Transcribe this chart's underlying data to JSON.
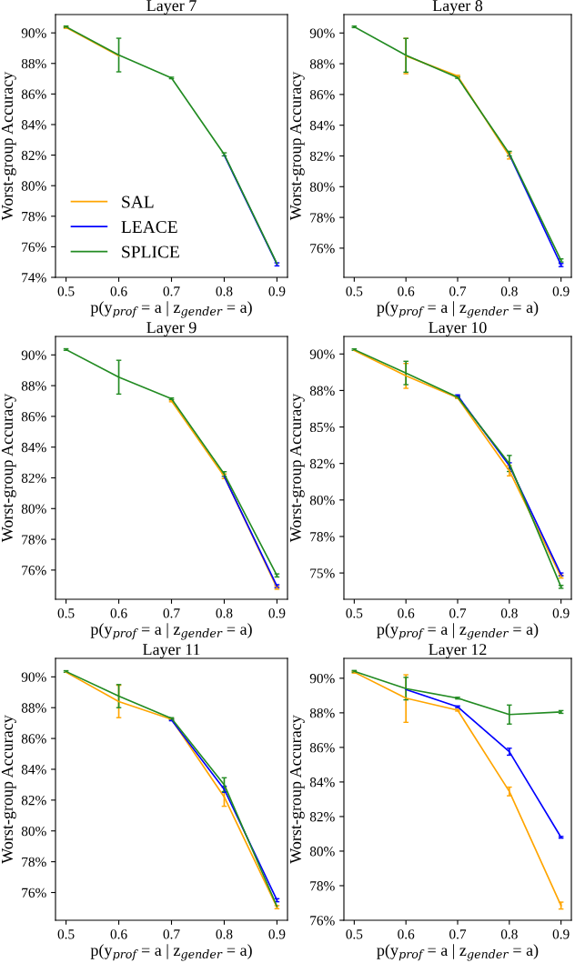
{
  "chart_data": [
    {
      "type": "line",
      "title": "Layer 7",
      "xlabel": "p(y$_{prof}$ = a | z$_{gender}$ = a)",
      "ylabel": "Worst-group Accuracy",
      "x": [
        0.5,
        0.6,
        0.7,
        0.8,
        0.9
      ],
      "xlim": [
        0.48,
        0.92
      ],
      "xticks": [
        0.5,
        0.6,
        0.7,
        0.8,
        0.9
      ],
      "ylim": [
        74,
        91.2
      ],
      "yticks": [
        {
          "value": 74,
          "label": "74%"
        },
        {
          "value": 76,
          "label": "76%"
        },
        {
          "value": 78,
          "label": "78%"
        },
        {
          "value": 80,
          "label": "80%"
        },
        {
          "value": 82,
          "label": "82%"
        },
        {
          "value": 84,
          "label": "84%"
        },
        {
          "value": 86,
          "label": "86%"
        },
        {
          "value": 88,
          "label": "88%"
        },
        {
          "value": 90,
          "label": "90%"
        }
      ],
      "legend": "bottom left",
      "grid": false,
      "marker": "none",
      "line_style": "solid",
      "series": [
        {
          "name": "SAL",
          "color": "#ffa500",
          "values": [
            90.35,
            88.5,
            null,
            null,
            null
          ],
          "errors": [
            0.05,
            null,
            null,
            null,
            null
          ]
        },
        {
          "name": "LEACE",
          "color": "#0000ff",
          "values": [
            null,
            null,
            null,
            82.0,
            74.85
          ],
          "errors": [
            null,
            null,
            null,
            null,
            0.1
          ]
        },
        {
          "name": "SPLICE",
          "color": "#228b22",
          "values": [
            90.4,
            88.55,
            87.05,
            82.05,
            74.9
          ],
          "errors": [
            0.05,
            1.1,
            0.05,
            0.1,
            null
          ]
        }
      ]
    },
    {
      "type": "line",
      "title": "Layer 8",
      "xlabel": "p(y$_{prof}$ = a | z$_{gender}$ = a)",
      "ylabel": "Worst-group Accuracy",
      "x": [
        0.5,
        0.6,
        0.7,
        0.8,
        0.9
      ],
      "xlim": [
        0.48,
        0.92
      ],
      "xticks": [
        0.5,
        0.6,
        0.7,
        0.8,
        0.9
      ],
      "ylim": [
        74.1,
        91.2
      ],
      "yticks": [
        {
          "value": 76,
          "label": "76%"
        },
        {
          "value": 78,
          "label": "78%"
        },
        {
          "value": 80,
          "label": "80%"
        },
        {
          "value": 82,
          "label": "82%"
        },
        {
          "value": 84,
          "label": "84%"
        },
        {
          "value": 86,
          "label": "86%"
        },
        {
          "value": 88,
          "label": "88%"
        },
        {
          "value": 90,
          "label": "90%"
        }
      ],
      "grid": false,
      "marker": "none",
      "line_style": "solid",
      "series": [
        {
          "color": "#ffa500",
          "values": [
            null,
            88.5,
            87.2,
            82.0,
            null
          ],
          "errors": [
            null,
            1.15,
            0.05,
            0.2,
            null
          ]
        },
        {
          "color": "#0000ff",
          "values": [
            null,
            null,
            null,
            82.1,
            74.9
          ],
          "errors": [
            null,
            null,
            null,
            null,
            0.1
          ]
        },
        {
          "color": "#228b22",
          "values": [
            90.4,
            88.55,
            87.1,
            82.15,
            75.2
          ],
          "errors": [
            0.05,
            1.1,
            0.05,
            0.15,
            0.1
          ]
        }
      ]
    },
    {
      "type": "line",
      "title": "Layer 9",
      "xlabel": "p(y$_{prof}$ = a | z$_{gender}$ = a)",
      "ylabel": "Worst-group Accuracy",
      "x": [
        0.5,
        0.6,
        0.7,
        0.8,
        0.9
      ],
      "xlim": [
        0.48,
        0.92
      ],
      "xticks": [
        0.5,
        0.6,
        0.7,
        0.8,
        0.9
      ],
      "ylim": [
        74.1,
        91.2
      ],
      "yticks": [
        {
          "value": 76,
          "label": "76%"
        },
        {
          "value": 78,
          "label": "78%"
        },
        {
          "value": 80,
          "label": "80%"
        },
        {
          "value": 82,
          "label": "82%"
        },
        {
          "value": 84,
          "label": "84%"
        },
        {
          "value": 86,
          "label": "86%"
        },
        {
          "value": 88,
          "label": "88%"
        },
        {
          "value": 90,
          "label": "90%"
        }
      ],
      "grid": false,
      "marker": "none",
      "line_style": "solid",
      "series": [
        {
          "color": "#ffa500",
          "values": [
            null,
            null,
            87.0,
            82.1,
            74.85
          ],
          "errors": [
            null,
            null,
            0.05,
            0.15,
            0.1
          ]
        },
        {
          "color": "#0000ff",
          "values": [
            null,
            null,
            null,
            82.1,
            74.95
          ],
          "errors": [
            null,
            null,
            null,
            null,
            0.1
          ]
        },
        {
          "color": "#228b22",
          "values": [
            90.35,
            88.55,
            87.15,
            82.25,
            75.65
          ],
          "errors": [
            0.05,
            1.1,
            0.05,
            0.15,
            0.1
          ]
        }
      ]
    },
    {
      "type": "line",
      "title": "Layer 10",
      "xlabel": "p(y$_{prof}$ = a | z$_{gender}$ = a)",
      "ylabel": "Worst-group Accuracy",
      "x": [
        0.5,
        0.6,
        0.7,
        0.8,
        0.9
      ],
      "xlim": [
        0.48,
        0.92
      ],
      "xticks": [
        0.5,
        0.6,
        0.7,
        0.8,
        0.9
      ],
      "ylim": [
        73.2,
        91.2
      ],
      "yticks": [
        {
          "value": 75,
          "label": "75%"
        },
        {
          "value": 77.5,
          "label": "78%"
        },
        {
          "value": 80,
          "label": "80%"
        },
        {
          "value": 82.5,
          "label": "82%"
        },
        {
          "value": 85,
          "label": "85%"
        },
        {
          "value": 87.5,
          "label": "88%"
        },
        {
          "value": 90,
          "label": "90%"
        }
      ],
      "grid": false,
      "marker": "none",
      "line_style": "solid",
      "series": [
        {
          "color": "#ffa500",
          "values": [
            90.25,
            88.5,
            87.0,
            82.0,
            74.75
          ],
          "errors": [
            null,
            0.85,
            0.05,
            0.35,
            0.1
          ]
        },
        {
          "color": "#0000ff",
          "values": [
            null,
            null,
            87.15,
            82.35,
            74.9
          ],
          "errors": [
            null,
            null,
            0.05,
            0.2,
            0.1
          ]
        },
        {
          "color": "#228b22",
          "values": [
            90.3,
            88.7,
            87.05,
            82.5,
            74.05
          ],
          "errors": [
            0.05,
            0.8,
            0.05,
            0.55,
            0.1
          ]
        }
      ]
    },
    {
      "type": "line",
      "title": "Layer 11",
      "xlabel": "p(y$_{prof}$ = a | z$_{gender}$ = a)",
      "ylabel": "Worst-group Accuracy",
      "x": [
        0.5,
        0.6,
        0.7,
        0.8,
        0.9
      ],
      "xlim": [
        0.48,
        0.92
      ],
      "xticks": [
        0.5,
        0.6,
        0.7,
        0.8,
        0.9
      ],
      "ylim": [
        74.2,
        91.2
      ],
      "yticks": [
        {
          "value": 76,
          "label": "76%"
        },
        {
          "value": 78,
          "label": "78%"
        },
        {
          "value": 80,
          "label": "80%"
        },
        {
          "value": 82,
          "label": "82%"
        },
        {
          "value": 84,
          "label": "84%"
        },
        {
          "value": 86,
          "label": "86%"
        },
        {
          "value": 88,
          "label": "88%"
        },
        {
          "value": 90,
          "label": "90%"
        }
      ],
      "grid": false,
      "marker": "none",
      "line_style": "solid",
      "series": [
        {
          "color": "#ffa500",
          "values": [
            90.3,
            88.4,
            87.25,
            82.2,
            75.05
          ],
          "errors": [
            null,
            1.05,
            0.05,
            0.6,
            0.1
          ]
        },
        {
          "color": "#0000ff",
          "values": [
            null,
            null,
            87.2,
            82.7,
            75.5
          ],
          "errors": [
            null,
            null,
            0.05,
            0.2,
            0.1
          ]
        },
        {
          "color": "#228b22",
          "values": [
            90.35,
            88.75,
            87.3,
            83.0,
            75.1
          ],
          "errors": [
            0.05,
            0.75,
            0.05,
            0.45,
            null
          ]
        }
      ]
    },
    {
      "type": "line",
      "title": "Layer 12",
      "xlabel": "p(y$_{prof}$ = a | z$_{gender}$ = a)",
      "ylabel": "Worst-group Accuracy",
      "x": [
        0.5,
        0.6,
        0.7,
        0.8,
        0.9
      ],
      "xlim": [
        0.48,
        0.92
      ],
      "xticks": [
        0.5,
        0.6,
        0.7,
        0.8,
        0.9
      ],
      "ylim": [
        76,
        91.15
      ],
      "yticks": [
        {
          "value": 76,
          "label": "76%"
        },
        {
          "value": 78,
          "label": "78%"
        },
        {
          "value": 80,
          "label": "80%"
        },
        {
          "value": 82,
          "label": "82%"
        },
        {
          "value": 84,
          "label": "84%"
        },
        {
          "value": 86,
          "label": "86%"
        },
        {
          "value": 88,
          "label": "88%"
        },
        {
          "value": 90,
          "label": "90%"
        }
      ],
      "grid": false,
      "marker": "none",
      "line_style": "solid",
      "series": [
        {
          "color": "#ffa500",
          "values": [
            90.35,
            88.85,
            88.15,
            83.45,
            76.85
          ],
          "errors": [
            0.05,
            [
              87.45,
              90.2
            ],
            0.05,
            0.25,
            0.2
          ]
        },
        {
          "color": "#0000ff",
          "values": [
            null,
            89.35,
            88.35,
            85.75,
            80.8
          ],
          "errors": [
            null,
            null,
            0.05,
            0.2,
            0.05
          ]
        },
        {
          "color": "#228b22",
          "values": [
            90.4,
            89.4,
            88.85,
            87.9,
            88.05
          ],
          "errors": [
            0.05,
            0.65,
            0.05,
            0.55,
            0.08
          ]
        }
      ]
    }
  ]
}
